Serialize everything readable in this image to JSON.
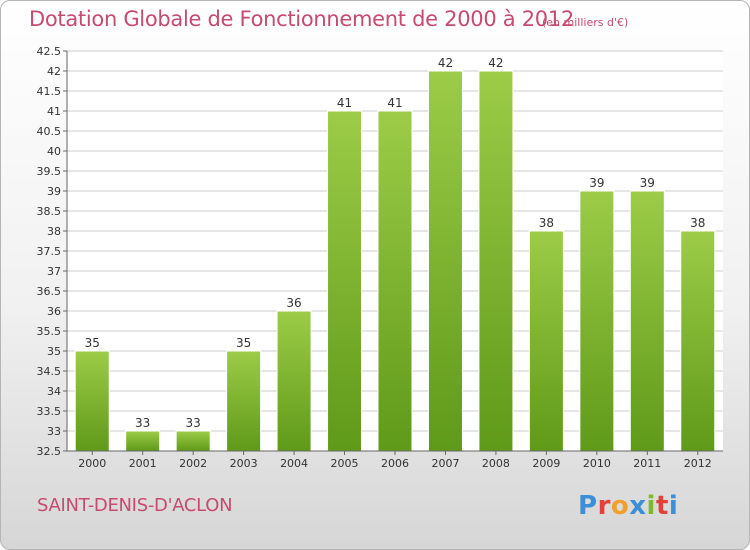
{
  "header": {
    "title": "Dotation Globale de Fonctionnement de 2000 à 2012",
    "unit": "(en milliers d'€)"
  },
  "footer": {
    "commune": "SAINT-DENIS-D'ACLON",
    "logo_text": "Proxiti"
  },
  "colors": {
    "bar_top": "#9ccc48",
    "bar_bottom": "#5f9a18",
    "title": "#c74a70",
    "grid": "#cccccc"
  },
  "chart_data": {
    "type": "bar",
    "categories": [
      "2000",
      "2001",
      "2002",
      "2003",
      "2004",
      "2005",
      "2006",
      "2007",
      "2008",
      "2009",
      "2010",
      "2011",
      "2012"
    ],
    "values": [
      35,
      33,
      33,
      35,
      36,
      41,
      41,
      42,
      42,
      38,
      39,
      39,
      38
    ],
    "ylim": [
      32.5,
      42.5
    ],
    "yticks": [
      "32.5",
      "33",
      "33.5",
      "34",
      "34.5",
      "35",
      "35.5",
      "36",
      "36.5",
      "37",
      "37.5",
      "38",
      "38.5",
      "39",
      "39.5",
      "40",
      "40.5",
      "41",
      "41.5",
      "42",
      "42.5"
    ],
    "grid": true,
    "legend": "none"
  }
}
